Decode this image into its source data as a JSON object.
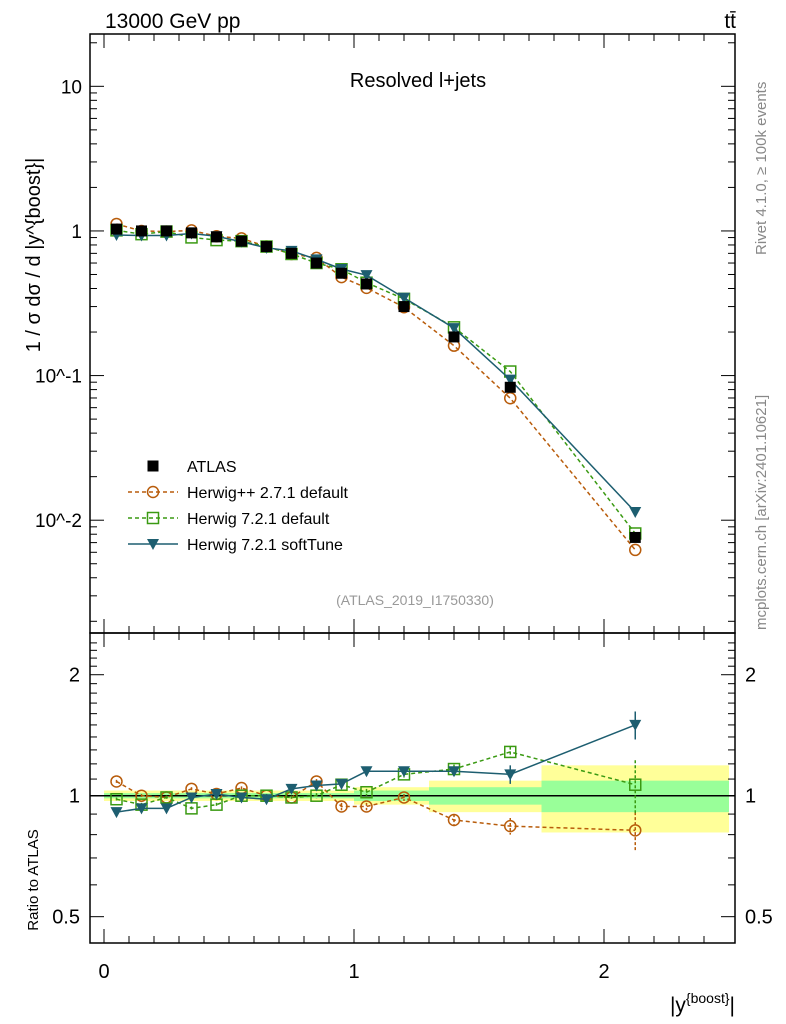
{
  "header": {
    "energy_label": "13000 GeV pp",
    "process_label": "tt̄"
  },
  "side_texts": {
    "rivet": "Rivet 4.1.0, ≥ 100k events",
    "mcplots": "mcplots.cern.ch [arXiv:2401.10621]"
  },
  "chart_data": {
    "type": "line",
    "title": "Resolved l+jets",
    "analysis_id": "(ATLAS_2019_I1750330)",
    "xlabel": "|y^{boost}|",
    "ylabel": "1 / σ dσ / d |y^{boost}|",
    "ratio_ylabel": "Ratio to ATLAS",
    "xlim": [
      -0.056,
      2.524
    ],
    "ylim": [
      0.00166,
      23
    ],
    "yscale": "log",
    "ratio_ylim": [
      0.43,
      2.54
    ],
    "xticks": [
      "0",
      "1",
      "2"
    ],
    "yticks": [
      {
        "value": 10,
        "label": "10"
      },
      {
        "value": 1,
        "label": "1"
      },
      {
        "value": 0.1,
        "label": "10^-1"
      },
      {
        "value": 0.01,
        "label": "10^-2"
      }
    ],
    "ratio_yticks": [
      {
        "value": 2,
        "label": "2"
      },
      {
        "value": 1,
        "label": "1"
      },
      {
        "value": 0.5,
        "label": "0.5"
      }
    ],
    "bin_edges": [
      0,
      0.1,
      0.2,
      0.3,
      0.4,
      0.5,
      0.6,
      0.7,
      0.8,
      0.9,
      1.0,
      1.1,
      1.3,
      1.5,
      1.75,
      2.5
    ],
    "x": [
      0.05,
      0.15,
      0.25,
      0.35,
      0.45,
      0.55,
      0.65,
      0.75,
      0.85,
      0.95,
      1.05,
      1.2,
      1.4,
      1.625,
      2.125
    ],
    "data": {
      "name": "ATLAS",
      "values": [
        1.03,
        1.0,
        1.0,
        0.97,
        0.91,
        0.85,
        0.78,
        0.7,
        0.6,
        0.51,
        0.43,
        0.3,
        0.185,
        0.083,
        0.0076
      ]
    },
    "ratio_band_stat": [
      0.015,
      0.015,
      0.015,
      0.015,
      0.015,
      0.015,
      0.015,
      0.015,
      0.015,
      0.015,
      0.03,
      0.03,
      0.05,
      0.05,
      0.09
    ],
    "ratio_band_total": [
      0.03,
      0.03,
      0.03,
      0.03,
      0.03,
      0.03,
      0.03,
      0.03,
      0.03,
      0.03,
      0.05,
      0.05,
      0.09,
      0.09,
      0.19
    ],
    "series": [
      {
        "name": "Herwig++ 2.7.1 default",
        "color": "#b85c0b",
        "marker": "circle",
        "dashed": true,
        "ratio": [
          1.085,
          1.0,
          0.99,
          1.04,
          1.01,
          1.045,
          1.0,
          0.99,
          1.085,
          0.94,
          0.94,
          0.99,
          0.87,
          0.84,
          0.82
        ],
        "ratio_err": [
          0.01,
          0.01,
          0.01,
          0.01,
          0.01,
          0.01,
          0.01,
          0.01,
          0.015,
          0.02,
          0.02,
          0.02,
          0.03,
          0.04,
          0.09
        ]
      },
      {
        "name": "Herwig 7.2.1 default",
        "color": "#3a9a12",
        "marker": "square",
        "dashed": true,
        "ratio": [
          0.98,
          0.95,
          0.99,
          0.93,
          0.95,
          1.0,
          1.0,
          0.99,
          1.0,
          1.065,
          1.02,
          1.13,
          1.165,
          1.285,
          1.065
        ],
        "ratio_err": [
          0.01,
          0.01,
          0.01,
          0.01,
          0.01,
          0.01,
          0.01,
          0.01,
          0.015,
          0.02,
          0.02,
          0.02,
          0.03,
          0.04,
          0.16
        ]
      },
      {
        "name": "Herwig 7.2.1 softTune",
        "color": "#1d5e70",
        "marker": "triangle-down",
        "dashed": false,
        "ratio": [
          0.91,
          0.93,
          0.93,
          0.99,
          1.01,
          0.99,
          0.98,
          1.04,
          1.06,
          1.07,
          1.15,
          1.15,
          1.15,
          1.13,
          1.5
        ],
        "ratio_err": [
          0.02,
          0.02,
          0.02,
          0.02,
          0.02,
          0.02,
          0.02,
          0.02,
          0.02,
          0.02,
          0.03,
          0.02,
          0.03,
          0.06,
          0.12
        ]
      }
    ],
    "legend_position": "lower-left"
  }
}
